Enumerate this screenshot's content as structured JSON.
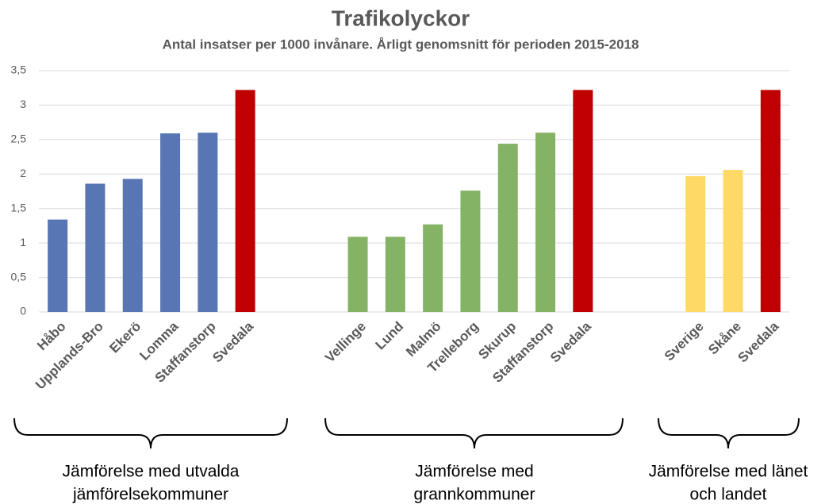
{
  "chart_data": {
    "type": "bar",
    "title": "Trafikolyckor",
    "subtitle": "Antal insatser per 1000 invånare. Årligt genomsnitt för perioden 2015-2018",
    "categories": [
      "Håbo",
      "Upplands-Bro",
      "Ekerö",
      "Lomma",
      "Staffanstorp",
      "Svedala",
      null,
      null,
      "Vellinge",
      "Lund",
      "Malmö",
      "Trelleborg",
      "Skurup",
      "Staffanstorp",
      "Svedala",
      null,
      null,
      "Sverige",
      "Skåne",
      "Svedala"
    ],
    "values": [
      1.34,
      1.86,
      1.93,
      2.59,
      2.6,
      3.22,
      null,
      null,
      1.09,
      1.09,
      1.27,
      1.76,
      2.44,
      2.6,
      3.22,
      null,
      null,
      1.97,
      2.06,
      3.22
    ],
    "colors": [
      "#5875b4",
      "#5875b4",
      "#5875b4",
      "#5875b4",
      "#5875b4",
      "#c00000",
      null,
      null,
      "#84b365",
      "#84b365",
      "#84b365",
      "#84b365",
      "#84b365",
      "#84b365",
      "#c00000",
      null,
      null,
      "#ffd966",
      "#ffd966",
      "#c00000"
    ],
    "ylim": [
      0,
      3.5
    ],
    "yticks": [
      0,
      {
        "value": 0.5,
        "label": "0,5"
      },
      1,
      {
        "value": 1.5,
        "label": "1,5"
      },
      2,
      {
        "value": 2.5,
        "label": "2,5"
      },
      3,
      {
        "value": 3.5,
        "label": "3,5"
      }
    ],
    "grid": true,
    "groups": [
      {
        "lines": [
          "Jämförelse med utvalda",
          "jämförelsekommuner"
        ]
      },
      {
        "lines": [
          "Jämförelse med",
          "grannkommuner"
        ]
      },
      {
        "lines": [
          "Jämförelse med länet",
          "och landet"
        ]
      }
    ]
  }
}
